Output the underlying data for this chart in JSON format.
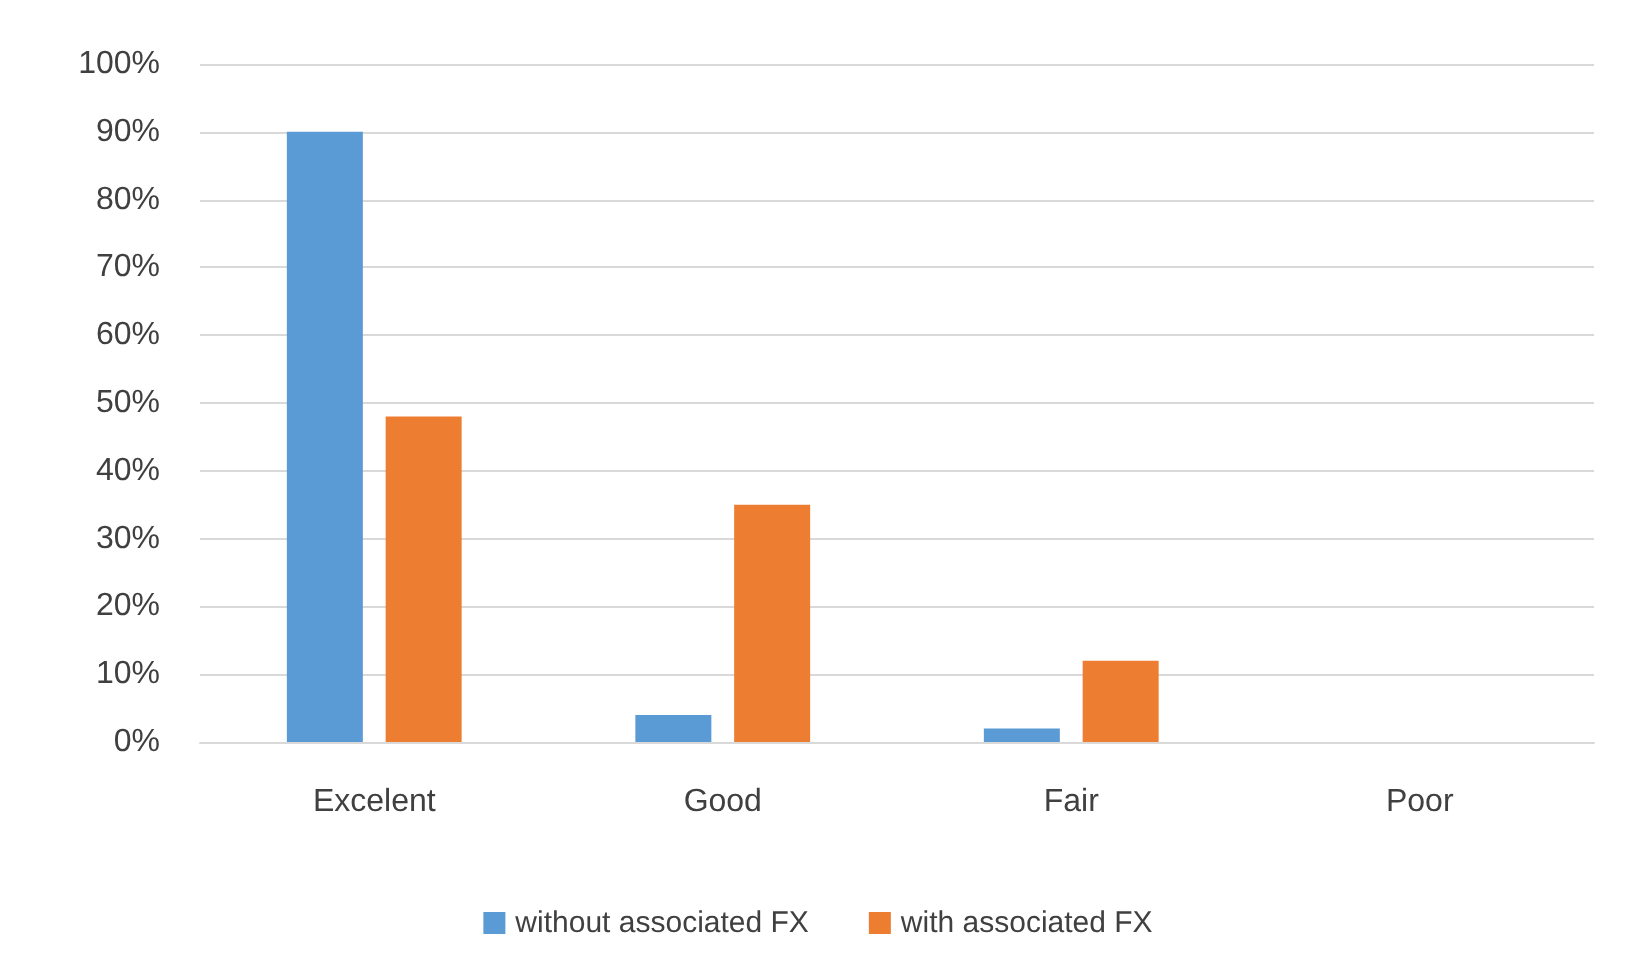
{
  "chart_data": {
    "type": "bar",
    "categories": [
      "Excelent",
      "Good",
      "Fair",
      "Poor"
    ],
    "series": [
      {
        "name": "without associated FX",
        "color": "#5b9bd5",
        "values": [
          90,
          4,
          2,
          0
        ]
      },
      {
        "name": "with associated FX",
        "color": "#ed7d31",
        "values": [
          48,
          35,
          12,
          0
        ]
      }
    ],
    "ylim": [
      0,
      100
    ],
    "yticks": [
      {
        "value": 0,
        "label": "0%"
      },
      {
        "value": 10,
        "label": "10%"
      },
      {
        "value": 20,
        "label": "20%"
      },
      {
        "value": 30,
        "label": "30%"
      },
      {
        "value": 40,
        "label": "40%"
      },
      {
        "value": 50,
        "label": "50%"
      },
      {
        "value": 60,
        "label": "60%"
      },
      {
        "value": 70,
        "label": "70%"
      },
      {
        "value": 80,
        "label": "80%"
      },
      {
        "value": 90,
        "label": "90%"
      },
      {
        "value": 100,
        "label": "100%"
      }
    ],
    "grid": "y",
    "legend": "bottom"
  }
}
